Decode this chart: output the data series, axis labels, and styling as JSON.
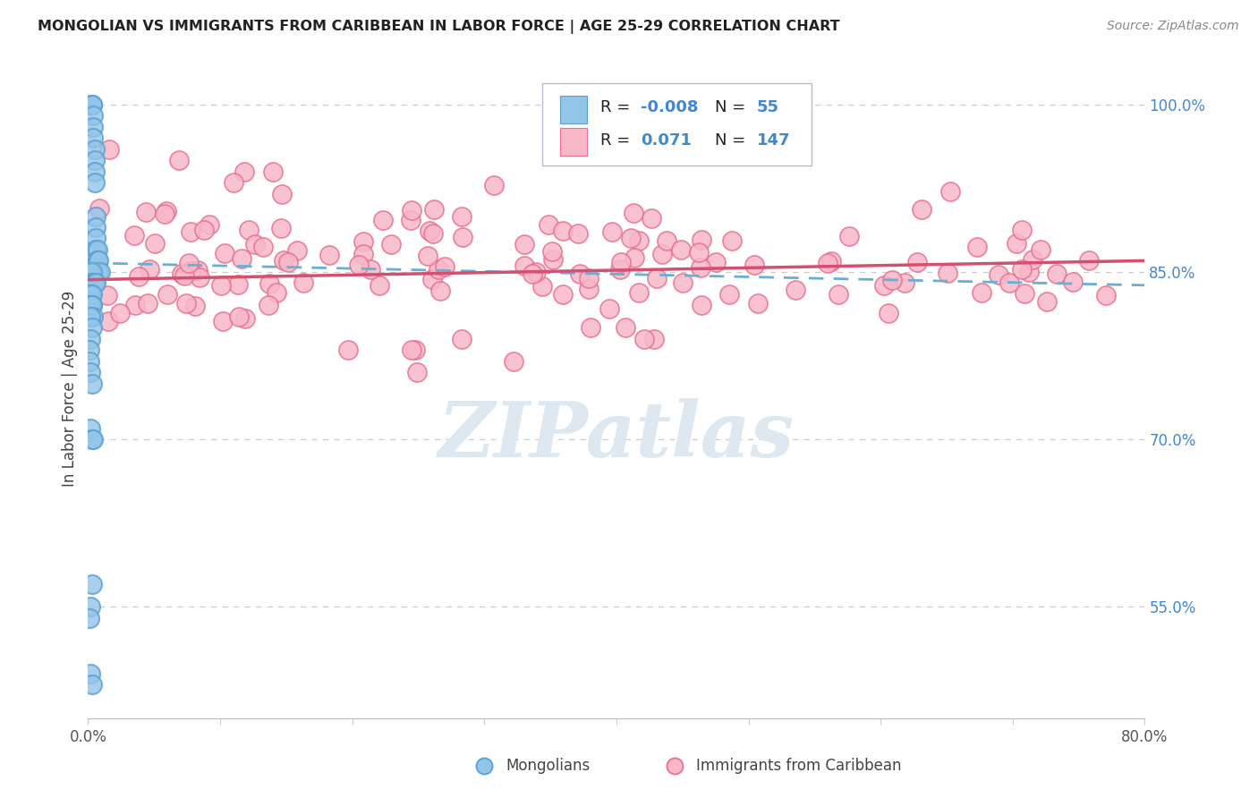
{
  "title": "MONGOLIAN VS IMMIGRANTS FROM CARIBBEAN IN LABOR FORCE | AGE 25-29 CORRELATION CHART",
  "source": "Source: ZipAtlas.com",
  "ylabel": "In Labor Force | Age 25-29",
  "legend_mongolians": "Mongolians",
  "legend_caribbean": "Immigrants from Caribbean",
  "R_mongolian": -0.008,
  "N_mongolian": 55,
  "R_caribbean": 0.071,
  "N_caribbean": 147,
  "mongolian_color": "#92c5e8",
  "mongolian_edge": "#5a9fd4",
  "caribbean_color": "#f7b8c8",
  "caribbean_edge": "#e87090",
  "mongolian_line_color": "#6aaed6",
  "caribbean_line_color": "#d45070",
  "background_color": "#ffffff",
  "xlim": [
    0.0,
    0.8
  ],
  "ylim": [
    0.45,
    1.04
  ],
  "right_tick_color": "#4488cc",
  "grid_color": "#cccccc",
  "legend_box_color": "#f0f4ff",
  "legend_border_color": "#bbbbcc"
}
